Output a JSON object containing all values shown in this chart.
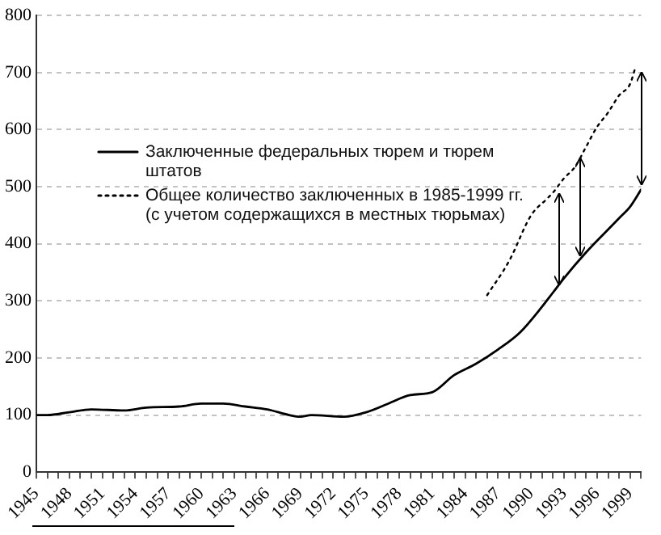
{
  "chart_data": {
    "type": "line",
    "legend": "left",
    "grid": "y",
    "marker": "none",
    "xlim": [
      1945,
      2000
    ],
    "ylim": [
      0,
      800
    ],
    "xticks": [
      1945,
      {
        "value": 1946,
        "label": null
      },
      {
        "value": 1947,
        "label": null
      },
      1948,
      {
        "value": 1949,
        "label": null
      },
      {
        "value": 1950,
        "label": null
      },
      1951,
      {
        "value": 1952,
        "label": null
      },
      {
        "value": 1953,
        "label": null
      },
      1954,
      {
        "value": 1955,
        "label": null
      },
      {
        "value": 1956,
        "label": null
      },
      1957,
      {
        "value": 1958,
        "label": null
      },
      {
        "value": 1959,
        "label": null
      },
      1960,
      {
        "value": 1961,
        "label": null
      },
      {
        "value": 1962,
        "label": null
      },
      1963,
      {
        "value": 1964,
        "label": null
      },
      {
        "value": 1965,
        "label": null
      },
      1966,
      {
        "value": 1967,
        "label": null
      },
      {
        "value": 1968,
        "label": null
      },
      1969,
      {
        "value": 1970,
        "label": null
      },
      {
        "value": 1971,
        "label": null
      },
      1972,
      {
        "value": 1973,
        "label": null
      },
      {
        "value": 1974,
        "label": null
      },
      1975,
      {
        "value": 1976,
        "label": null
      },
      {
        "value": 1977,
        "label": null
      },
      1978,
      {
        "value": 1979,
        "label": null
      },
      {
        "value": 1980,
        "label": null
      },
      1981,
      {
        "value": 1982,
        "label": null
      },
      {
        "value": 1983,
        "label": null
      },
      1984,
      {
        "value": 1985,
        "label": null
      },
      {
        "value": 1986,
        "label": null
      },
      1987,
      {
        "value": 1988,
        "label": null
      },
      {
        "value": 1989,
        "label": null
      },
      1990,
      {
        "value": 1991,
        "label": null
      },
      {
        "value": 1992,
        "label": null
      },
      1993,
      {
        "value": 1994,
        "label": null
      },
      {
        "value": 1995,
        "label": null
      },
      1996,
      {
        "value": 1997,
        "label": null
      },
      {
        "value": 1998,
        "label": null
      },
      1999,
      {
        "value": 2000,
        "label": null
      }
    ],
    "yticks": [
      0,
      100,
      200,
      300,
      400,
      500,
      600,
      700,
      800
    ],
    "series": [
      {
        "name": "Заключенные федеральных тюрем и тюрем штатов",
        "color": "#000000",
        "line_style": "solid",
        "x": [
          1945,
          1946,
          1948,
          1950,
          1953,
          1955,
          1958,
          1960,
          1962,
          1964,
          1966,
          1968,
          1969,
          1970,
          1973,
          1975,
          1977,
          1979,
          1981,
          1983,
          1985,
          1987,
          1989,
          1991,
          1992,
          1993,
          1995,
          1997,
          1998,
          1999,
          2000
        ],
        "values": [
          100,
          100,
          105,
          110,
          108,
          113,
          115,
          120,
          120,
          115,
          110,
          100,
          97,
          100,
          97,
          105,
          120,
          135,
          140,
          170,
          190,
          215,
          245,
          290,
          315,
          340,
          385,
          425,
          445,
          465,
          495
        ]
      },
      {
        "name": "Общее количество заключенных в 1985-1999 гг. (с учетом содержащихся в местных тюрьмах)",
        "color": "#000000",
        "line_style": "dotted",
        "x": [
          1986,
          1988,
          1990,
          1991.5,
          1992,
          1993,
          1994,
          1995,
          1996,
          1997,
          1998,
          1999,
          1999.5
        ],
        "values": [
          310,
          370,
          450,
          480,
          490,
          515,
          535,
          570,
          605,
          630,
          660,
          680,
          710
        ]
      }
    ]
  }
}
